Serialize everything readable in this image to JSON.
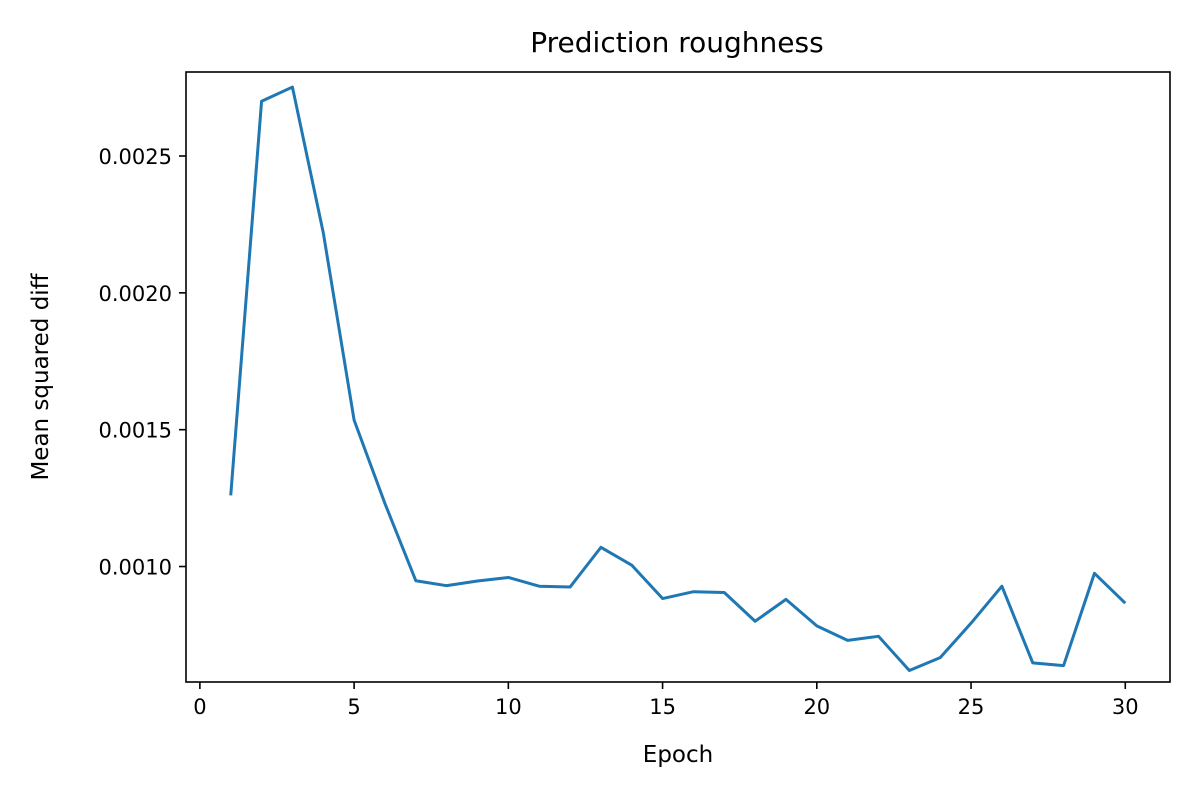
{
  "chart_data": {
    "type": "line",
    "title": "Prediction roughness",
    "xlabel": "Epoch",
    "ylabel": "Mean squared diff",
    "xlim": [
      -0.45,
      31.45
    ],
    "ylim": [
      0.000578,
      0.002807
    ],
    "xticks": [
      0,
      5,
      10,
      15,
      20,
      25,
      30
    ],
    "yticks": [
      0.001,
      0.0015,
      0.002,
      0.0025
    ],
    "xtick_labels": [
      "0",
      "5",
      "10",
      "15",
      "20",
      "25",
      "30"
    ],
    "ytick_labels": [
      "0.0010",
      "0.0015",
      "0.0020",
      "0.0025"
    ],
    "grid": false,
    "series": [
      {
        "color": "#1f77b4",
        "x": [
          1,
          2,
          3,
          4,
          5,
          6,
          7,
          8,
          9,
          10,
          11,
          12,
          13,
          14,
          15,
          16,
          17,
          18,
          19,
          20,
          21,
          22,
          23,
          24,
          25,
          26,
          27,
          28,
          29,
          30
        ],
        "y": [
          0.00126,
          0.0027,
          0.002752,
          0.00222,
          0.001535,
          0.00123,
          0.000948,
          0.00093,
          0.000947,
          0.00096,
          0.000928,
          0.000925,
          0.00107,
          0.001005,
          0.000883,
          0.000908,
          0.000905,
          0.0008,
          0.00088,
          0.000783,
          0.00073,
          0.000745,
          0.00062,
          0.000667,
          0.000793,
          0.000928,
          0.000648,
          0.000638,
          0.000975,
          0.000866
        ]
      }
    ]
  }
}
